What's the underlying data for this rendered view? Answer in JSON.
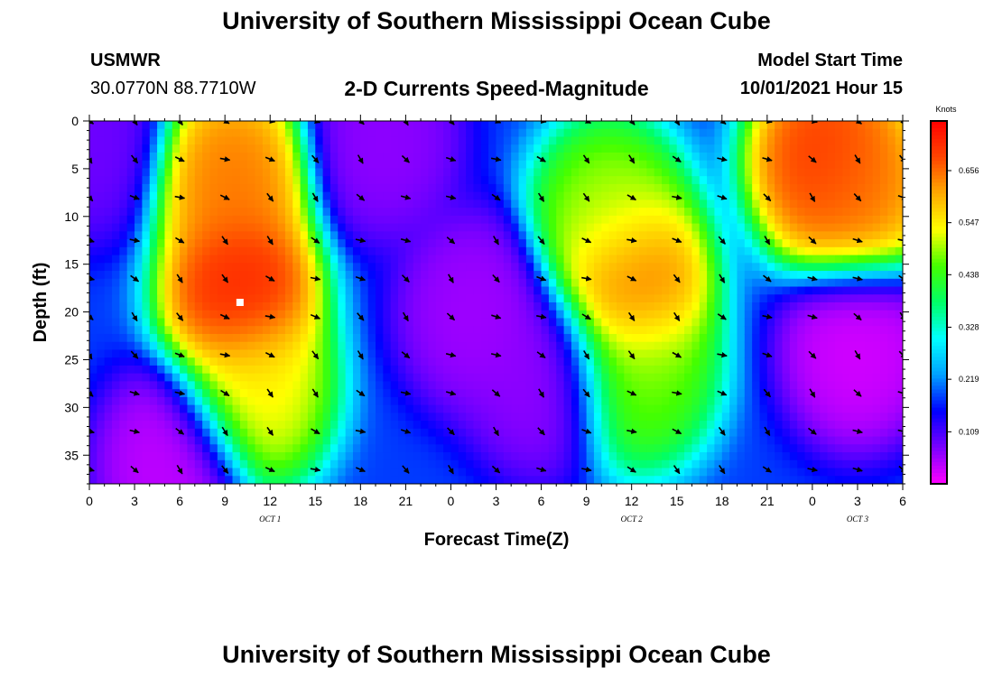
{
  "header": {
    "title": "University of Southern Mississippi Ocean Cube",
    "station": "USMWR",
    "coords": "30.0770N  88.7710W",
    "subtitle": "2-D Currents Speed-Magnitude",
    "model_start_label": "Model Start Time",
    "model_start_value": "10/01/2021 Hour 15"
  },
  "footer": {
    "title": "University of Southern Mississippi Ocean Cube"
  },
  "colors": {
    "scale": [
      "#ff00ff",
      "#7a00ff",
      "#0000ff",
      "#00a0ff",
      "#00ffff",
      "#00ff66",
      "#44ff00",
      "#ffff00",
      "#ffaa00",
      "#ff4400",
      "#ff0000"
    ],
    "arrow": "#000000",
    "marker": "#ffffff"
  },
  "chart_data": {
    "type": "heatmap",
    "xlabel": "Forecast Time(Z)",
    "ylabel": "Depth (ft)",
    "x_tick_labels": [
      "0",
      "3",
      "6",
      "9",
      "12",
      "15",
      "18",
      "21",
      "0",
      "3",
      "6",
      "9",
      "12",
      "15",
      "18",
      "21",
      "0",
      "3",
      "6"
    ],
    "day_labels": [
      {
        "label": "OCT 1",
        "tick_index": 4
      },
      {
        "label": "OCT 2",
        "tick_index": 12
      },
      {
        "label": "OCT 3",
        "tick_index": 17
      }
    ],
    "y_ticks": [
      0,
      5,
      10,
      15,
      20,
      25,
      30,
      35
    ],
    "ylim": [
      0,
      38
    ],
    "y_inverted": true,
    "x_range_hours": [
      0,
      54
    ],
    "colorbar": {
      "unit": "Knots",
      "tick_values": [
        0.109,
        0.219,
        0.328,
        0.438,
        0.547,
        0.656
      ],
      "range": [
        0.0,
        0.76
      ]
    },
    "speed_hotspots": [
      {
        "hour": 10,
        "depth": 18,
        "speed": 0.74
      },
      {
        "hour": 9.5,
        "depth": 6,
        "speed": 0.66
      },
      {
        "hour": 11,
        "depth": 28,
        "speed": 0.55
      },
      {
        "hour": 36,
        "depth": 17,
        "speed": 0.68
      },
      {
        "hour": 34.5,
        "depth": 10,
        "speed": 0.5
      },
      {
        "hour": 36.5,
        "depth": 26,
        "speed": 0.48
      },
      {
        "hour": 49,
        "depth": 4,
        "speed": 0.72
      },
      {
        "hour": 51,
        "depth": 7,
        "speed": 0.65
      }
    ],
    "speed_minima": [
      {
        "hour": 19.5,
        "depth": 2,
        "speed": 0.06
      },
      {
        "hour": 25.5,
        "depth": 20,
        "speed": 0.05
      },
      {
        "hour": 30,
        "depth": 27,
        "speed": 0.06
      },
      {
        "hour": 5.5,
        "depth": 36,
        "speed": 0.03
      },
      {
        "hour": 51,
        "depth": 24,
        "speed": 0.02
      },
      {
        "hour": 0,
        "depth": 2,
        "speed": 0.08
      }
    ],
    "current_vectors": {
      "x_spacing_hours": 3,
      "depths": [
        0,
        4,
        8,
        12.5,
        16.5,
        20.5,
        24.5,
        28.5,
        32.5,
        36.5
      ],
      "direction_note": "arrows mostly point down-right (toward southeast)"
    },
    "marker": {
      "hour": 10,
      "depth": 19
    }
  }
}
